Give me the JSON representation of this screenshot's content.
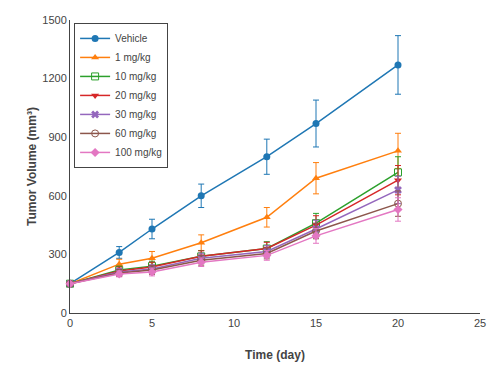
{
  "chart_data": {
    "type": "line",
    "x": [
      0,
      3,
      5,
      8,
      12,
      15,
      20
    ],
    "series": [
      {
        "name": "Vehicle",
        "marker": "circle",
        "values": [
          150,
          310,
          430,
          600,
          800,
          970,
          1270
        ],
        "sem": [
          5,
          30,
          50,
          60,
          90,
          120,
          150
        ]
      },
      {
        "name": "1 mg/kg",
        "marker": "triangle-up",
        "values": [
          150,
          250,
          280,
          360,
          490,
          690,
          830
        ],
        "sem": [
          5,
          25,
          35,
          40,
          50,
          80,
          90
        ]
      },
      {
        "name": "10 mg/kg",
        "marker": "square-open",
        "values": [
          150,
          220,
          240,
          290,
          330,
          460,
          720
        ],
        "sem": [
          5,
          20,
          25,
          30,
          35,
          50,
          80
        ]
      },
      {
        "name": "20 mg/kg",
        "marker": "triangle-down",
        "values": [
          150,
          215,
          235,
          290,
          330,
          450,
          680
        ],
        "sem": [
          5,
          20,
          25,
          28,
          32,
          48,
          75
        ]
      },
      {
        "name": "30 mg/kg",
        "marker": "x",
        "values": [
          150,
          210,
          225,
          280,
          315,
          430,
          630
        ],
        "sem": [
          5,
          18,
          22,
          26,
          30,
          45,
          70
        ]
      },
      {
        "name": "60 mg/kg",
        "marker": "circle-open",
        "values": [
          150,
          205,
          220,
          270,
          305,
          420,
          560
        ],
        "sem": [
          5,
          18,
          22,
          25,
          28,
          40,
          65
        ]
      },
      {
        "name": "100 mg/kg",
        "marker": "diamond",
        "values": [
          150,
          200,
          210,
          260,
          295,
          395,
          530
        ],
        "sem": [
          5,
          15,
          20,
          22,
          25,
          38,
          60
        ]
      }
    ],
    "x_label": "Time (day)",
    "y_label": "Tumor Volume (mm³)",
    "xlim": [
      0,
      25
    ],
    "xticks": [
      0,
      5,
      10,
      15,
      20,
      25
    ],
    "ylim": [
      0,
      1500
    ],
    "yticks": [
      0,
      300,
      600,
      900,
      1200,
      1500
    ],
    "grid": false,
    "legend": "upper left"
  }
}
